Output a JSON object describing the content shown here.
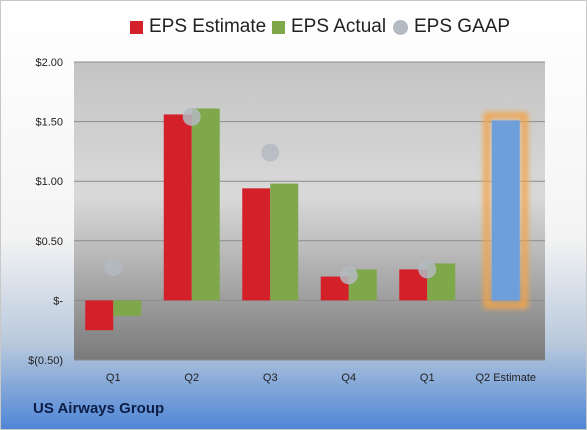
{
  "chart_data": {
    "type": "bar",
    "categories": [
      "Q1",
      "Q2",
      "Q3",
      "Q4",
      "Q1",
      "Q2 Estimate"
    ],
    "series": [
      {
        "name": "EPS Estimate",
        "color": "#d42129",
        "values": [
          -0.25,
          1.56,
          0.94,
          0.2,
          0.26,
          null
        ]
      },
      {
        "name": "EPS Actual",
        "color": "#7fa84a",
        "values": [
          -0.13,
          1.61,
          0.98,
          0.26,
          0.31,
          null
        ]
      },
      {
        "name": "EPS GAAP",
        "color": "#b4bac2",
        "marker": "circle",
        "values": [
          0.28,
          1.54,
          1.24,
          0.21,
          0.26,
          null
        ]
      },
      {
        "name": "",
        "color": "#6f9fdb",
        "highlight": "#f2a44a",
        "values": [
          null,
          null,
          null,
          null,
          null,
          1.51
        ]
      }
    ],
    "y_ticks": [
      {
        "value": 2.0,
        "label": "$2.00"
      },
      {
        "value": 1.5,
        "label": "$1.50"
      },
      {
        "value": 1.0,
        "label": "$1.00"
      },
      {
        "value": 0.5,
        "label": "$0.50"
      },
      {
        "value": 0.0,
        "label": "$-"
      },
      {
        "value": -0.5,
        "label": "$(0.50)"
      }
    ],
    "ylim": [
      -0.5,
      2.0
    ],
    "grid": true,
    "legend_position": "top"
  },
  "footer": {
    "company": "US Airways Group"
  }
}
